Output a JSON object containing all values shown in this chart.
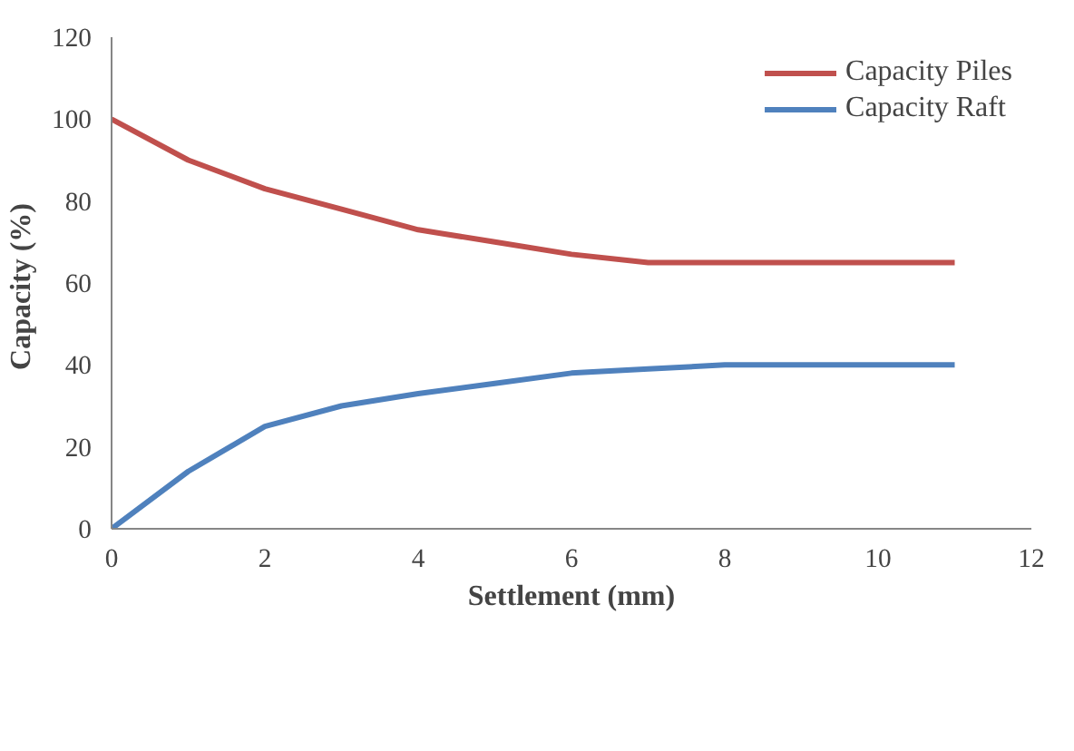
{
  "chart_data": {
    "type": "line",
    "xlabel": "Settlement (mm)",
    "ylabel": "Capacity  (%)",
    "x": [
      0,
      1,
      2,
      3,
      4,
      5,
      6,
      7,
      8,
      9,
      10,
      11
    ],
    "series": [
      {
        "name": "Capacity Piles",
        "color": "#c0504d",
        "values": [
          100,
          90,
          83,
          78,
          73,
          70,
          67,
          65,
          65,
          65,
          65,
          65
        ]
      },
      {
        "name": "Capacity Raft",
        "color": "#4f81bd",
        "values": [
          0,
          14,
          25,
          30,
          33,
          35.5,
          38,
          39,
          40,
          40,
          40,
          40
        ]
      }
    ],
    "xlim": [
      0,
      12
    ],
    "ylim": [
      0,
      120
    ],
    "xticks": [
      0,
      2,
      4,
      6,
      8,
      10,
      12
    ],
    "yticks": [
      0,
      20,
      40,
      60,
      80,
      100,
      120
    ],
    "grid": false,
    "legend": "top right",
    "marker": "none",
    "line_style": "solid"
  }
}
